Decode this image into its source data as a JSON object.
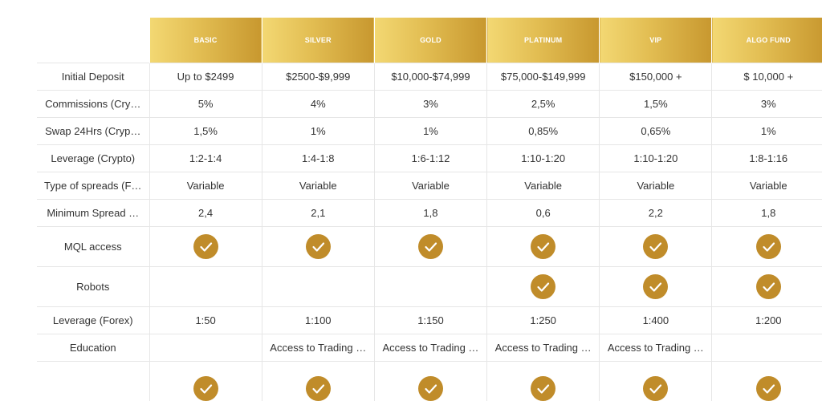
{
  "plans": [
    "BASIC",
    "SILVER",
    "GOLD",
    "PLATINUM",
    "VIP",
    "ALGO FUND"
  ],
  "rows": [
    {
      "label": "Initial Deposit",
      "cells": [
        "Up to $2499",
        "$2500-$9,999",
        "$10,000-$74,999",
        "$75,000-$149,999",
        "$150,000 +",
        "$ 10,000 +"
      ]
    },
    {
      "label": "Commissions (Cry…",
      "cells": [
        "5%",
        "4%",
        "3%",
        "2,5%",
        "1,5%",
        "3%"
      ]
    },
    {
      "label": "Swap 24Hrs (Cryp…",
      "cells": [
        "1,5%",
        "1%",
        "1%",
        "0,85%",
        "0,65%",
        "1%"
      ]
    },
    {
      "label": "Leverage (Crypto)",
      "cells": [
        "1:2-1:4",
        "1:4-1:8",
        "1:6-1:12",
        "1:10-1:20",
        "1:10-1:20",
        "1:8-1:16"
      ]
    },
    {
      "label": "Type of spreads (F…",
      "cells": [
        "Variable",
        "Variable",
        "Variable",
        "Variable",
        "Variable",
        "Variable"
      ]
    },
    {
      "label": "Minimum Spread …",
      "cells": [
        "2,4",
        "2,1",
        "1,8",
        "0,6",
        "2,2",
        "1,8"
      ]
    },
    {
      "label": "MQL access",
      "checks": [
        true,
        true,
        true,
        true,
        true,
        true
      ]
    },
    {
      "label": "Robots",
      "checks": [
        false,
        false,
        false,
        true,
        true,
        true
      ]
    },
    {
      "label": "Leverage (Forex)",
      "cells": [
        "1:50",
        "1:100",
        "1:150",
        "1:250",
        "1:400",
        "1:200"
      ]
    },
    {
      "label": "Education",
      "cells": [
        "",
        "Access to Trading …",
        "Access to Trading …",
        "Access to Trading …",
        "Access to Trading …",
        ""
      ]
    },
    {
      "label": "",
      "checks": [
        true,
        true,
        true,
        true,
        true,
        true
      ]
    }
  ],
  "colors": {
    "header_gradient_start": "#f3d873",
    "header_gradient_end": "#c8982f",
    "check_fill": "#c08c2a",
    "grid_line": "#e6e6e6"
  },
  "icons": {
    "included": "checkmark-circle-icon"
  }
}
